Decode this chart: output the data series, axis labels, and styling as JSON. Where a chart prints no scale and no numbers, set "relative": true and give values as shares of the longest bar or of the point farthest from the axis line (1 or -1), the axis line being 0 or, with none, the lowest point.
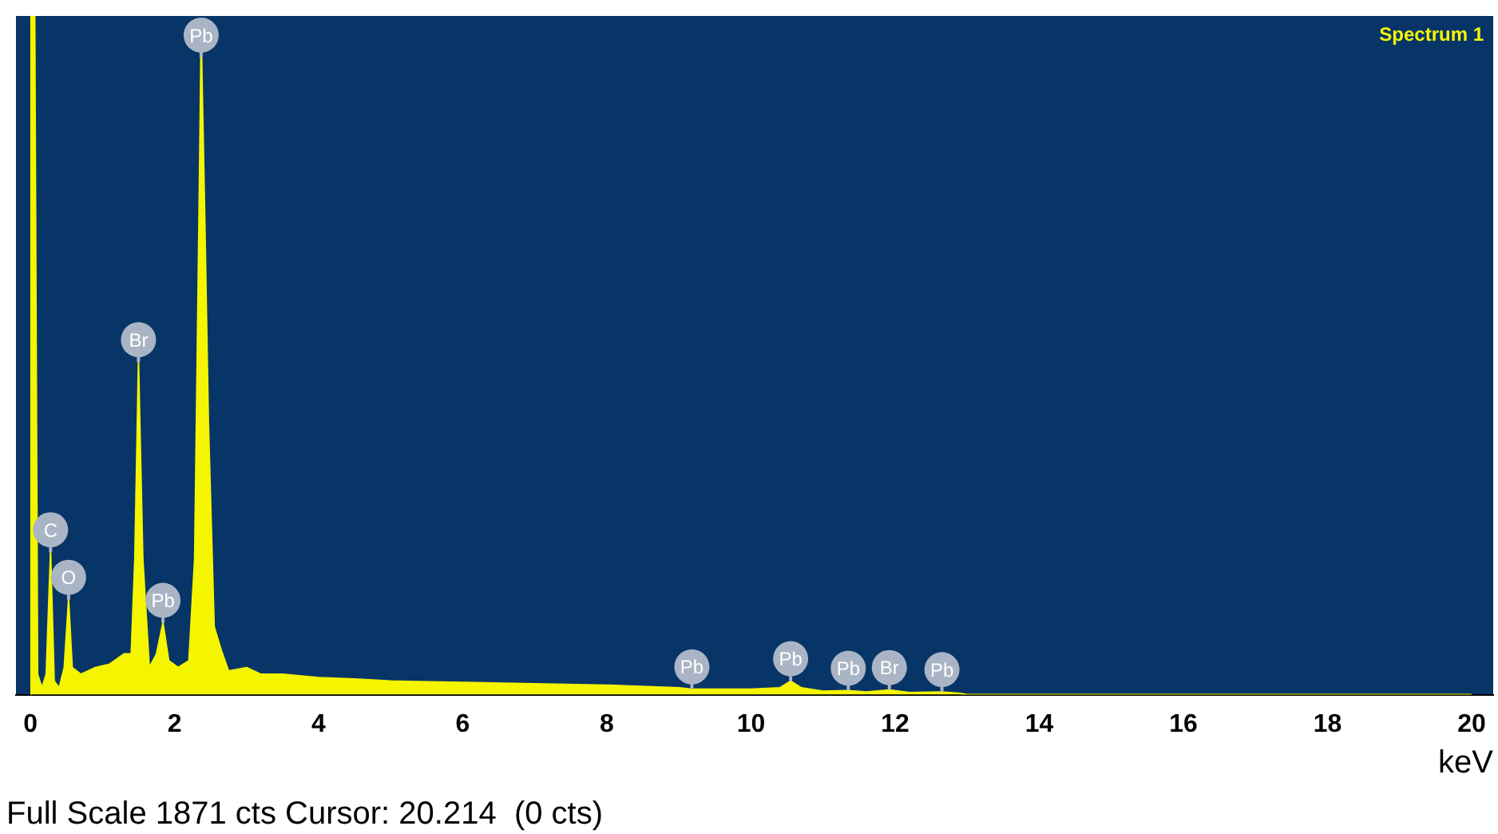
{
  "chart_data": {
    "type": "area",
    "relative": true,
    "xlabel": "keV",
    "legend": "top right",
    "grid": false,
    "x": [
      0,
      0.01,
      0.06,
      0.1,
      0.16,
      0.22,
      0.28,
      0.33,
      0.4,
      0.47,
      0.53,
      0.58,
      0.7,
      0.9,
      1.1,
      1.3,
      1.4,
      1.45,
      1.5,
      1.56,
      1.65,
      1.75,
      1.84,
      1.92,
      2.05,
      2.2,
      2.28,
      2.34,
      2.37,
      2.42,
      2.47,
      2.55,
      2.65,
      2.75,
      3.0,
      3.2,
      3.5,
      4,
      4.5,
      5,
      6,
      7,
      8,
      9,
      9.18,
      9.5,
      10,
      10.4,
      10.55,
      10.7,
      11,
      11.35,
      11.6,
      11.92,
      12.2,
      12.65,
      12.9,
      13,
      20
    ],
    "series": [
      {
        "name": "Spectrum 1",
        "color": "#f5f500",
        "values": [
          0,
          1,
          1,
          0.03,
          0.01,
          0.03,
          0.21,
          0.02,
          0.01,
          0.04,
          0.14,
          0.04,
          0.03,
          0.04,
          0.045,
          0.06,
          0.06,
          0.2,
          0.49,
          0.2,
          0.04,
          0.06,
          0.106,
          0.05,
          0.04,
          0.05,
          0.2,
          0.7,
          0.97,
          0.7,
          0.4,
          0.1,
          0.065,
          0.035,
          0.04,
          0.03,
          0.03,
          0.025,
          0.023,
          0.02,
          0.018,
          0.016,
          0.014,
          0.01,
          0.008,
          0.008,
          0.008,
          0.01,
          0.02,
          0.01,
          0.005,
          0.006,
          0.004,
          0.007,
          0.003,
          0.004,
          0.002,
          0,
          0
        ]
      }
    ],
    "xlim": [
      -0.2,
      20.3
    ],
    "xticks": [
      0,
      2,
      4,
      6,
      8,
      10,
      12,
      14,
      16,
      18,
      20
    ],
    "annotations": [
      {
        "text": "C",
        "x": 0.28,
        "y": 0.21
      },
      {
        "text": "O",
        "x": 0.53,
        "y": 0.14
      },
      {
        "text": "Br",
        "x": 1.5,
        "y": 0.49
      },
      {
        "text": "Pb",
        "x": 1.84,
        "y": 0.106
      },
      {
        "text": "Pb",
        "x": 2.37,
        "y": 0.97
      },
      {
        "text": "Pb",
        "x": 9.18,
        "y": 0.008
      },
      {
        "text": "Pb",
        "x": 10.55,
        "y": 0.02
      },
      {
        "text": "Pb",
        "x": 11.35,
        "y": 0.006
      },
      {
        "text": "Br",
        "x": 11.92,
        "y": 0.007
      },
      {
        "text": "Pb",
        "x": 12.65,
        "y": 0.004
      },
      "Full Scale 1871 cts Cursor: 20.214  (0 cts)"
    ]
  }
}
